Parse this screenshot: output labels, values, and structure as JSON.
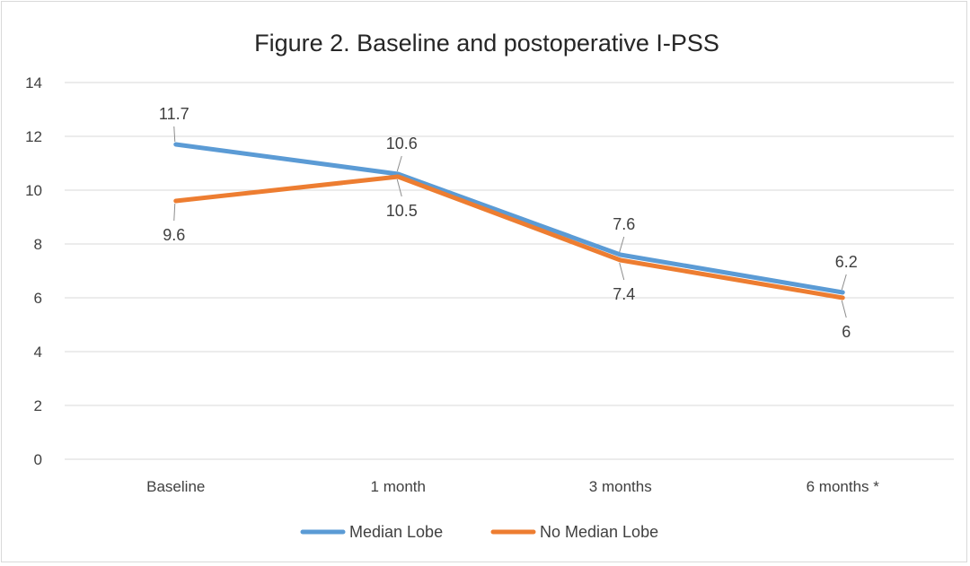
{
  "chart_data": {
    "type": "line",
    "title": "Figure 2. Baseline and postoperative I-PSS",
    "xlabel": "",
    "ylabel": "",
    "categories": [
      "Baseline",
      "1 month",
      "3 months",
      "6 months *"
    ],
    "ylim": [
      0,
      14
    ],
    "yticks": [
      0,
      2,
      4,
      6,
      8,
      10,
      12,
      14
    ],
    "grid": true,
    "legend_position": "bottom",
    "series": [
      {
        "name": "Median Lobe",
        "values": [
          11.7,
          10.6,
          7.6,
          6.2
        ],
        "labels": [
          "11.7",
          "10.6",
          "7.6",
          "6.2"
        ],
        "color": "#5b9bd5"
      },
      {
        "name": "No Median Lobe",
        "values": [
          9.6,
          10.5,
          7.4,
          6
        ],
        "labels": [
          "9.6",
          "10.5",
          "7.4",
          "6"
        ],
        "color": "#ed7d31"
      }
    ]
  }
}
